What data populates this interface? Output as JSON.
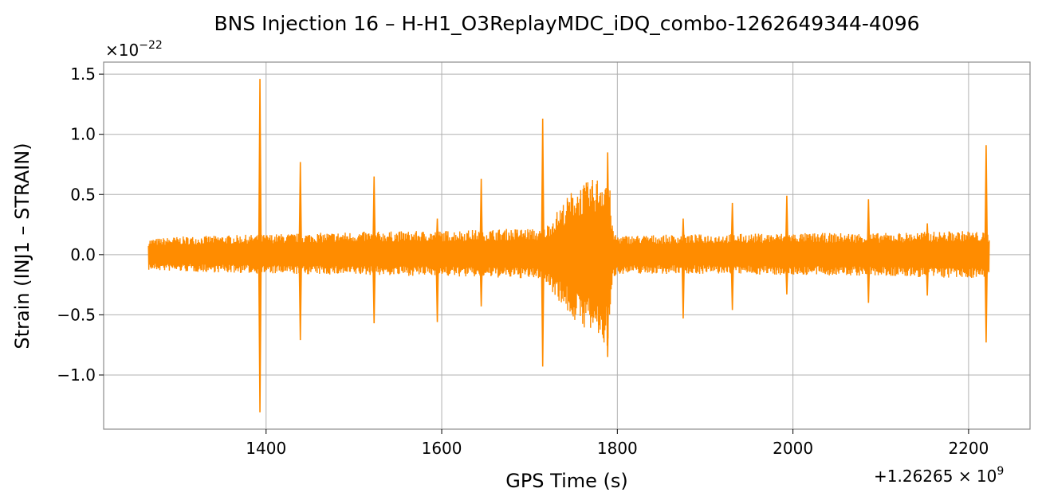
{
  "chart_data": {
    "type": "line",
    "title": "BNS Injection 16 – H-H1_O3ReplayMDC_iDQ_combo-1262649344-4096",
    "xlabel": "GPS Time (s)",
    "ylabel": "Strain (INJ1 – STRAIN)",
    "x_offset_label": "+1.26265 × 10",
    "x_offset_exp": "9",
    "y_scale_label": "×10",
    "y_scale_exp": "−22",
    "xlim": [
      1215,
      2270
    ],
    "ylim": [
      -1.45,
      1.6
    ],
    "x_ticks": [
      1400,
      1600,
      1800,
      2000,
      2200
    ],
    "x_tick_labels": [
      "1400",
      "1600",
      "1800",
      "2000",
      "2200"
    ],
    "y_ticks": [
      -1.0,
      -0.5,
      0.0,
      0.5,
      1.0,
      1.5
    ],
    "y_tick_labels": [
      "−1.0",
      "−0.5",
      "0.0",
      "0.5",
      "1.0",
      "1.5"
    ],
    "grid": true,
    "color": "#ff8c00",
    "series": [
      {
        "x_range": [
          1266,
          2224
        ],
        "noise_envelope": {
          "x": [
            1266,
            1300,
            1400,
            1500,
            1600,
            1700,
            1715,
            1730,
            1750,
            1770,
            1790,
            1795,
            1800,
            1900,
            2000,
            2100,
            2200,
            2224
          ],
          "upper": [
            0.13,
            0.15,
            0.17,
            0.19,
            0.2,
            0.22,
            0.2,
            0.35,
            0.55,
            0.62,
            0.7,
            0.2,
            0.16,
            0.17,
            0.18,
            0.18,
            0.2,
            0.18
          ],
          "lower": [
            -0.13,
            -0.14,
            -0.16,
            -0.17,
            -0.18,
            -0.2,
            -0.2,
            -0.35,
            -0.55,
            -0.65,
            -0.8,
            -0.2,
            -0.16,
            -0.16,
            -0.17,
            -0.18,
            -0.2,
            -0.18
          ]
        },
        "glitches": [
          {
            "x": 1393,
            "high": 1.46,
            "low": -1.31
          },
          {
            "x": 1439,
            "high": 0.77,
            "low": -0.71
          },
          {
            "x": 1523,
            "high": 0.65,
            "low": -0.57
          },
          {
            "x": 1595,
            "high": 0.3,
            "low": -0.56
          },
          {
            "x": 1645,
            "high": 0.63,
            "low": -0.43
          },
          {
            "x": 1715,
            "high": 1.13,
            "low": -0.93
          },
          {
            "x": 1789,
            "high": 0.85,
            "low": -0.85
          },
          {
            "x": 1875,
            "high": 0.3,
            "low": -0.53
          },
          {
            "x": 1931,
            "high": 0.43,
            "low": -0.46
          },
          {
            "x": 1993,
            "high": 0.49,
            "low": -0.33
          },
          {
            "x": 2086,
            "high": 0.46,
            "low": -0.4
          },
          {
            "x": 2153,
            "high": 0.26,
            "low": -0.34
          },
          {
            "x": 2220,
            "high": 0.91,
            "low": -0.73
          }
        ]
      }
    ]
  }
}
